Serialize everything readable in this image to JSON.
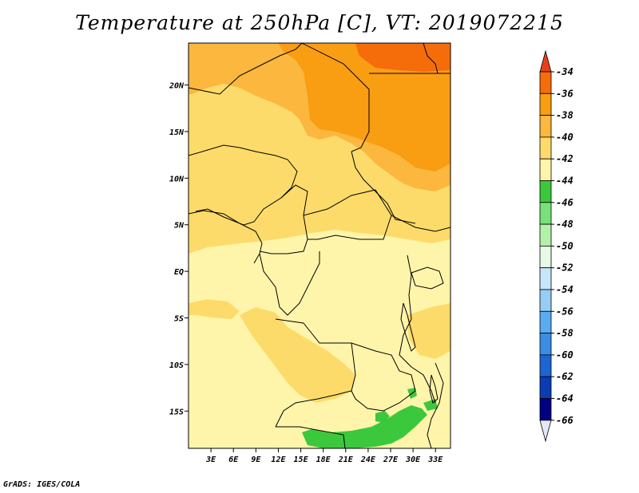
{
  "title": "Temperature at 250hPa [C], VT: 2019072215",
  "credit": "GrADS: IGES/COLA",
  "map": {
    "variable": "Temperature",
    "level": "250hPa",
    "units": "C",
    "valid_time": "2019072215",
    "lat_range": [
      -19,
      24.5
    ],
    "lon_range": [
      0,
      35
    ],
    "lat_ticks": [
      {
        "value": 20,
        "label": "20N"
      },
      {
        "value": 15,
        "label": "15N"
      },
      {
        "value": 10,
        "label": "10N"
      },
      {
        "value": 5,
        "label": "5N"
      },
      {
        "value": 0,
        "label": "EQ"
      },
      {
        "value": -5,
        "label": "5S"
      },
      {
        "value": -10,
        "label": "10S"
      },
      {
        "value": -15,
        "label": "15S"
      }
    ],
    "lon_ticks": [
      {
        "value": 3,
        "label": "3E"
      },
      {
        "value": 6,
        "label": "6E"
      },
      {
        "value": 9,
        "label": "9E"
      },
      {
        "value": 12,
        "label": "12E"
      },
      {
        "value": 15,
        "label": "15E"
      },
      {
        "value": 18,
        "label": "18E"
      },
      {
        "value": 21,
        "label": "21E"
      },
      {
        "value": 24,
        "label": "24E"
      },
      {
        "value": 27,
        "label": "27E"
      },
      {
        "value": 30,
        "label": "30E"
      },
      {
        "value": 33,
        "label": "33E"
      }
    ]
  },
  "colorbar": {
    "labels": [
      "-34",
      "-36",
      "-38",
      "-40",
      "-42",
      "-44",
      "-46",
      "-48",
      "-50",
      "-52",
      "-54",
      "-56",
      "-58",
      "-60",
      "-62",
      "-64",
      "-66"
    ],
    "colors": [
      "#e8401c",
      "#f46d0a",
      "#f99d12",
      "#fbb73e",
      "#fddb6a",
      "#fff5aa",
      "#3cc83c",
      "#78e17a",
      "#b5f0a8",
      "#e6fae6",
      "#c8e6fa",
      "#96cdf5",
      "#5aacf0",
      "#3c8ce6",
      "#1e64d2",
      "#0a3cb4",
      "#000082",
      "#e6e6fa"
    ],
    "top_color": "#e8401c",
    "bottom_color": "#e6e6fa"
  }
}
